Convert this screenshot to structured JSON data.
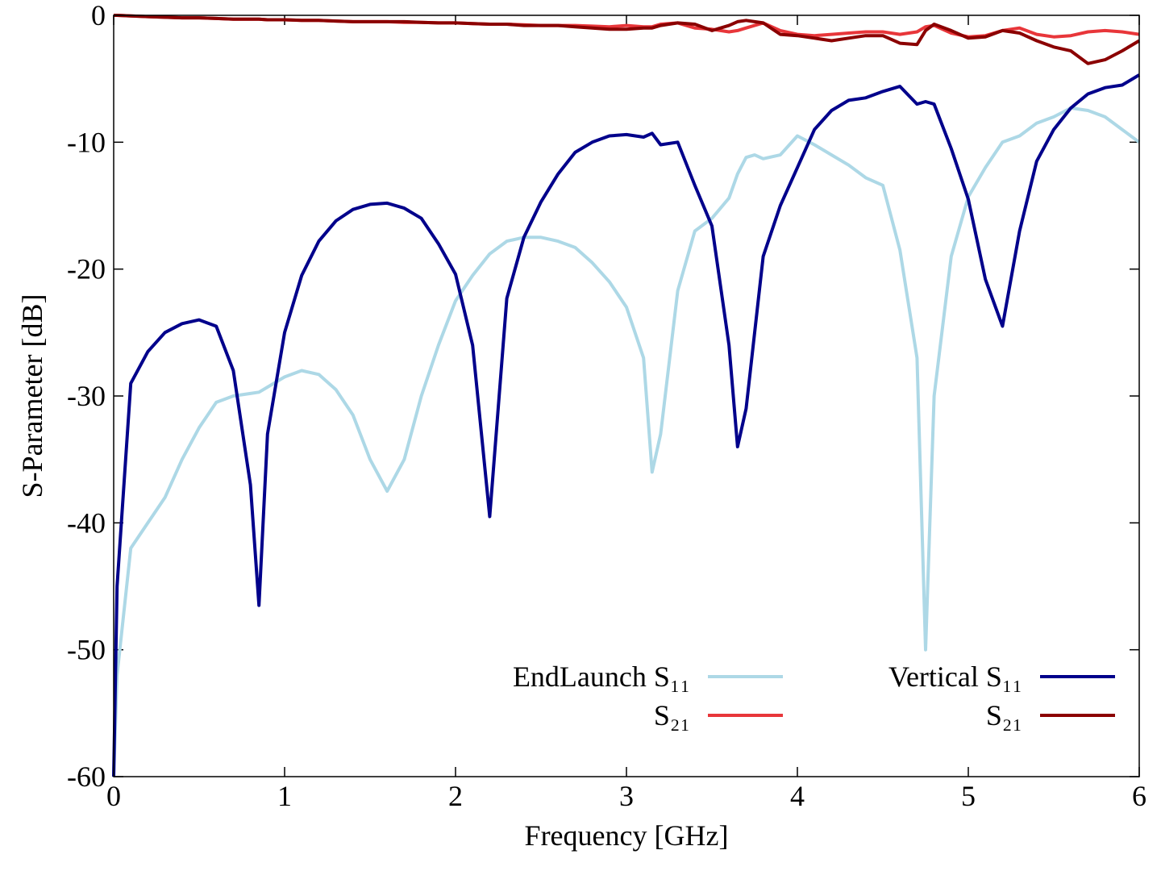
{
  "chart_data": {
    "type": "line",
    "xlabel": "Frequency [GHz]",
    "ylabel": "S-Parameter [dB]",
    "xlim": [
      0,
      6
    ],
    "ylim": [
      -60,
      0
    ],
    "xticks": [
      0,
      1,
      2,
      3,
      4,
      5,
      6
    ],
    "yticks": [
      -60,
      -50,
      -40,
      -30,
      -20,
      -10,
      0
    ],
    "grid": false,
    "legend": "lower right",
    "legend_columns": 2,
    "x": [
      0,
      0.02,
      0.1,
      0.2,
      0.3,
      0.4,
      0.5,
      0.6,
      0.7,
      0.8,
      0.85,
      0.9,
      1,
      1.1,
      1.2,
      1.3,
      1.4,
      1.5,
      1.6,
      1.7,
      1.8,
      1.9,
      2,
      2.1,
      2.2,
      2.3,
      2.4,
      2.5,
      2.6,
      2.7,
      2.8,
      2.9,
      3,
      3.1,
      3.15,
      3.2,
      3.3,
      3.4,
      3.5,
      3.6,
      3.65,
      3.7,
      3.75,
      3.8,
      3.9,
      4,
      4.1,
      4.2,
      4.3,
      4.4,
      4.5,
      4.6,
      4.7,
      4.75,
      4.8,
      4.9,
      5,
      5.1,
      5.2,
      5.3,
      5.4,
      5.5,
      5.6,
      5.7,
      5.8,
      5.9,
      6
    ],
    "series": [
      {
        "name": "EndLaunch S₁₁",
        "color": "#add8e6",
        "values": [
          -60,
          -52,
          -42,
          -40,
          -38,
          -35,
          -32.5,
          -30.5,
          -30,
          -29.8,
          -29.7,
          -29.3,
          -28.5,
          -28,
          -28.3,
          -29.5,
          -31.5,
          -35,
          -37.5,
          -35,
          -30,
          -26,
          -22.5,
          -20.5,
          -18.8,
          -17.8,
          -17.5,
          -17.5,
          -17.8,
          -18.3,
          -19.5,
          -21,
          -23,
          -27,
          -36,
          -33,
          -21.7,
          -17,
          -16,
          -14.4,
          -12.5,
          -11.2,
          -11,
          -11.3,
          -11,
          -9.5,
          -10.2,
          -11,
          -11.8,
          -12.8,
          -13.4,
          -18.5,
          -27,
          -50,
          -30,
          -19,
          -14.3,
          -12,
          -10,
          -9.5,
          -8.5,
          -8,
          -7.3,
          -7.5,
          -8,
          -9,
          -10
        ]
      },
      {
        "name": "S₂₁",
        "color": "#e8363a",
        "values": [
          0,
          0,
          -0.05,
          -0.1,
          -0.15,
          -0.2,
          -0.2,
          -0.25,
          -0.3,
          -0.3,
          -0.3,
          -0.35,
          -0.35,
          -0.4,
          -0.4,
          -0.45,
          -0.5,
          -0.5,
          -0.5,
          -0.55,
          -0.55,
          -0.6,
          -0.6,
          -0.65,
          -0.7,
          -0.7,
          -0.75,
          -0.8,
          -0.8,
          -0.8,
          -0.85,
          -0.9,
          -0.8,
          -0.9,
          -0.9,
          -0.7,
          -0.6,
          -1.0,
          -1.1,
          -1.3,
          -1.2,
          -1.0,
          -0.8,
          -0.6,
          -1.2,
          -1.5,
          -1.6,
          -1.5,
          -1.4,
          -1.3,
          -1.3,
          -1.5,
          -1.3,
          -0.9,
          -0.8,
          -1.4,
          -1.7,
          -1.6,
          -1.2,
          -1.0,
          -1.5,
          -1.7,
          -1.6,
          -1.3,
          -1.2,
          -1.3,
          -1.5
        ]
      },
      {
        "name": "Vertical S₁₁",
        "color": "#00008b",
        "values": [
          -60,
          -45,
          -29,
          -26.5,
          -25,
          -24.3,
          -24,
          -24.5,
          -28,
          -37,
          -46.5,
          -33,
          -25,
          -20.5,
          -17.8,
          -16.2,
          -15.3,
          -14.9,
          -14.8,
          -15.2,
          -16,
          -18,
          -20.4,
          -26,
          -39.5,
          -22.3,
          -17.5,
          -14.7,
          -12.5,
          -10.8,
          -10,
          -9.5,
          -9.4,
          -9.6,
          -9.3,
          -10.2,
          -10,
          -13.4,
          -16.6,
          -26,
          -34,
          -31,
          -25,
          -19,
          -15,
          -12,
          -9,
          -7.5,
          -6.7,
          -6.5,
          -6,
          -5.6,
          -7,
          -6.8,
          -7,
          -10.5,
          -14.5,
          -20.8,
          -24.5,
          -17,
          -11.5,
          -9,
          -7.3,
          -6.2,
          -5.7,
          -5.5,
          -4.7
        ]
      },
      {
        "name": "S₂₁",
        "color": "#8b0000",
        "values": [
          0,
          0,
          -0.05,
          -0.1,
          -0.15,
          -0.2,
          -0.2,
          -0.25,
          -0.3,
          -0.3,
          -0.3,
          -0.35,
          -0.35,
          -0.4,
          -0.4,
          -0.45,
          -0.5,
          -0.5,
          -0.5,
          -0.5,
          -0.55,
          -0.6,
          -0.6,
          -0.65,
          -0.7,
          -0.7,
          -0.8,
          -0.8,
          -0.8,
          -0.9,
          -1.0,
          -1.1,
          -1.1,
          -1.0,
          -1.0,
          -0.8,
          -0.6,
          -0.7,
          -1.2,
          -0.8,
          -0.5,
          -0.4,
          -0.5,
          -0.6,
          -1.5,
          -1.6,
          -1.8,
          -2.0,
          -1.8,
          -1.6,
          -1.6,
          -2.2,
          -2.3,
          -1.2,
          -0.7,
          -1.2,
          -1.8,
          -1.7,
          -1.2,
          -1.4,
          -2.0,
          -2.5,
          -2.8,
          -3.8,
          -3.5,
          -2.8,
          -2.0
        ]
      }
    ]
  }
}
